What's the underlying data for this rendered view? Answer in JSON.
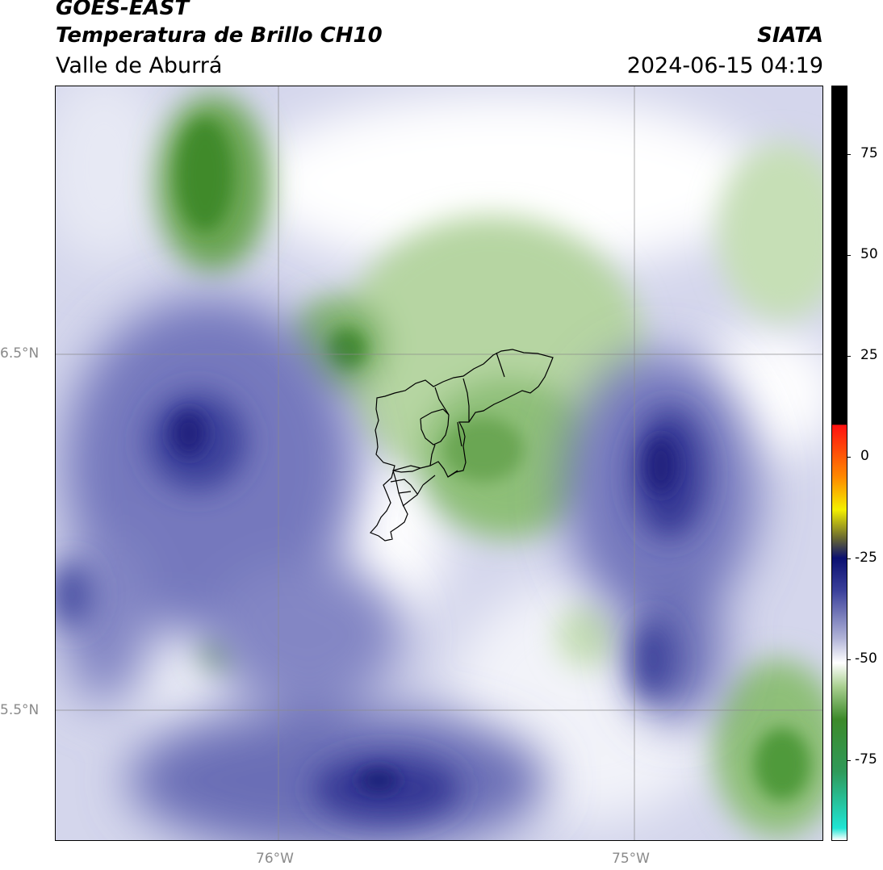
{
  "header": {
    "satellite": "GOES-EAST",
    "product": "Temperatura de Brillo CH10",
    "region": "Valle de Aburrá",
    "org": "SIATA",
    "datetime": "2024-06-15 04:19"
  },
  "axes": {
    "lat_labels": [
      "6.5°N",
      "5.5°N"
    ],
    "lon_labels": [
      "76°W",
      "75°W"
    ]
  },
  "colorbar": {
    "tick_labels": [
      "75",
      "50",
      "25",
      "0",
      "-25",
      "-50",
      "-75"
    ],
    "stops": [
      {
        "value": -95,
        "color": "#ffffff"
      },
      {
        "value": -92,
        "color": "#1fe5d4"
      },
      {
        "value": -78,
        "color": "#2f9a5a"
      },
      {
        "value": -65,
        "color": "#3d8a2a"
      },
      {
        "value": -57,
        "color": "#a8cf8f"
      },
      {
        "value": -51,
        "color": "#ffffff"
      },
      {
        "value": -45,
        "color": "#b2b4d8"
      },
      {
        "value": -33,
        "color": "#3a3f9a"
      },
      {
        "value": -25,
        "color": "#0b1070"
      },
      {
        "value": -20,
        "color": "#6a6a30"
      },
      {
        "value": -13,
        "color": "#f4f000"
      },
      {
        "value": -5,
        "color": "#ff8a00"
      },
      {
        "value": 8,
        "color": "#ff1010"
      },
      {
        "value": 8.1,
        "color": "#000000"
      },
      {
        "value": 92,
        "color": "#000000"
      }
    ]
  },
  "colors": {
    "cold_blue": "#2a2f8f",
    "mid_blue": "#7b7fc0",
    "light_blue": "#c7c9e4",
    "green_dark": "#3f8a2c",
    "green_light": "#b9d6a6",
    "boundary": "#000000"
  }
}
